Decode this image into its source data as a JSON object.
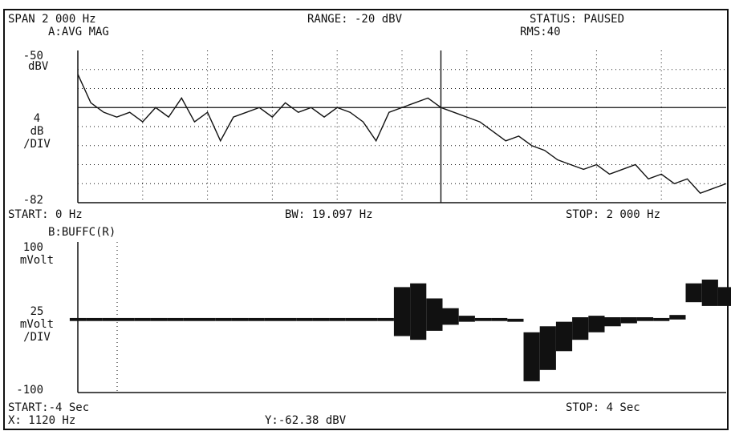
{
  "header": {
    "span": "SPAN  2 000 Hz",
    "range": "RANGE: -20 dBV",
    "status": "STATUS: PAUSED",
    "rms": "RMS:40"
  },
  "chart_data": [
    {
      "type": "line",
      "title": "A:AVG MAG",
      "y_unit": "dBV",
      "scale": [
        "4",
        "dB",
        "/DIV"
      ],
      "xlim": [
        0,
        2000
      ],
      "ylim": [
        -82,
        -50
      ],
      "yticks": [
        -50,
        -82
      ],
      "grid": true,
      "x_divisions": 10,
      "y_divisions": 8,
      "color": "#111111",
      "marker_x": 1120,
      "x": [
        0,
        40,
        80,
        120,
        160,
        200,
        240,
        280,
        320,
        360,
        400,
        440,
        480,
        520,
        560,
        600,
        640,
        680,
        720,
        760,
        800,
        840,
        880,
        920,
        960,
        1000,
        1040,
        1080,
        1120,
        1160,
        1200,
        1240,
        1280,
        1320,
        1360,
        1400,
        1440,
        1480,
        1520,
        1560,
        1600,
        1640,
        1680,
        1720,
        1760,
        1800,
        1840,
        1880,
        1920,
        1960,
        2000
      ],
      "values": [
        -55,
        -61,
        -63,
        -64,
        -63,
        -65,
        -62,
        -64,
        -60,
        -65,
        -63,
        -69,
        -64,
        -63,
        -62,
        -64,
        -61,
        -63,
        -62,
        -64,
        -62,
        -63,
        -65,
        -69,
        -63,
        -62,
        -61,
        -60,
        -62,
        -63,
        -64,
        -65,
        -67,
        -69,
        -68,
        -70,
        -71,
        -73,
        -74,
        -75,
        -74,
        -76,
        -75,
        -74,
        -77,
        -76,
        -78,
        -77,
        -80,
        -79,
        -78
      ],
      "footer": [
        "START: 0 Hz",
        "BW: 19.097 Hz",
        "STOP: 2 000 Hz"
      ]
    },
    {
      "type": "band",
      "title": "B:BUFFC(R)",
      "y_unit": "mVolt",
      "scale": [
        "25",
        "mVolt",
        "/DIV"
      ],
      "xlim": [
        -4,
        4
      ],
      "ylim": [
        -100,
        100
      ],
      "yticks": [
        100,
        -100
      ],
      "color": "#111111",
      "x": [
        -4,
        -3.8,
        -3.6,
        -3.4,
        -3.2,
        -3,
        -2.8,
        -2.6,
        -2.4,
        -2.2,
        -2,
        -1.8,
        -1.6,
        -1.4,
        -1.2,
        -1,
        -0.8,
        -0.6,
        -0.4,
        -0.2,
        0,
        0.2,
        0.4,
        0.6,
        0.8,
        1,
        1.2,
        1.4,
        1.6,
        1.8,
        2,
        2.2,
        2.4,
        2.6,
        2.8,
        3,
        3.2,
        3.4,
        3.6,
        3.8,
        4
      ],
      "values_max": [
        -1,
        -1,
        -1,
        -1,
        -1,
        -1,
        -1,
        -1,
        -1,
        -1,
        -1,
        -1,
        -1,
        -1,
        -1,
        -1,
        -1,
        -1,
        -1,
        -1,
        40,
        45,
        25,
        12,
        2,
        -1,
        -1,
        -2,
        -20,
        -12,
        -6,
        0,
        2,
        0,
        0,
        0,
        -1,
        3,
        45,
        50,
        40
      ],
      "values_min": [
        -5,
        -5,
        -5,
        -5,
        -5,
        -5,
        -5,
        -5,
        -5,
        -5,
        -5,
        -5,
        -5,
        -5,
        -5,
        -5,
        -5,
        -5,
        -5,
        -5,
        -25,
        -30,
        -18,
        -10,
        -6,
        -5,
        -5,
        -6,
        -85,
        -70,
        -45,
        -30,
        -20,
        -12,
        -8,
        -5,
        -5,
        -3,
        20,
        15,
        15
      ],
      "footer": [
        "START:-4  Sec",
        "STOP: 4  Sec"
      ]
    }
  ],
  "readout": {
    "x": "X: 1120 Hz",
    "y": "Y:-62.38 dBV"
  }
}
